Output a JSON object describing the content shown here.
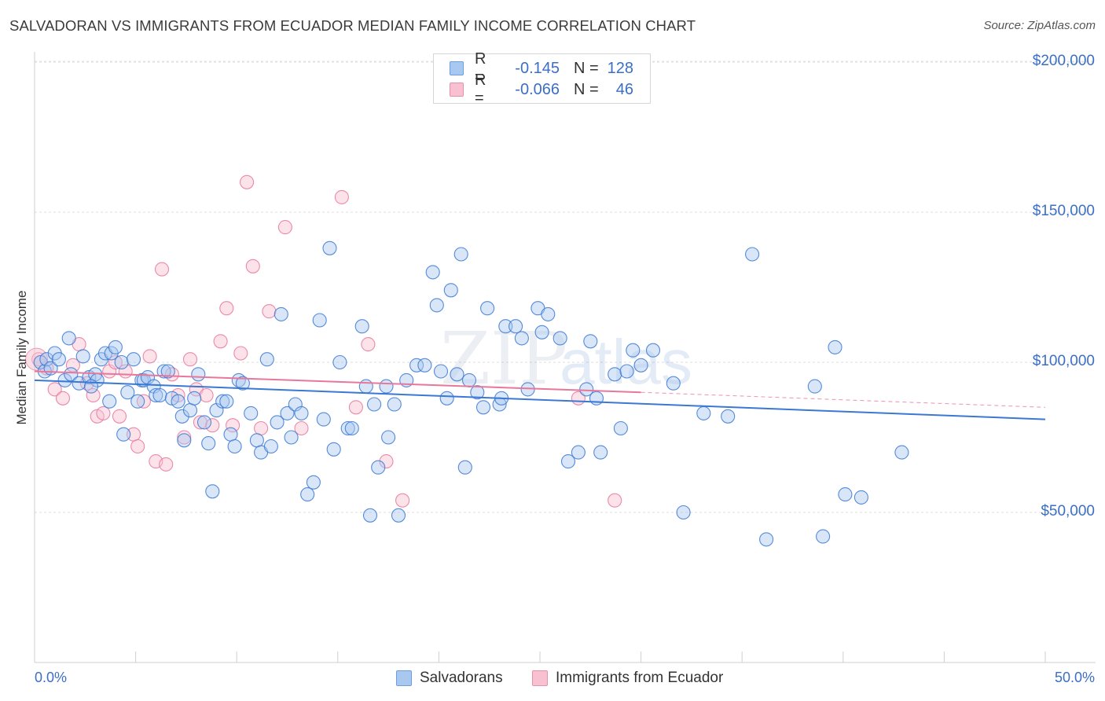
{
  "title": "SALVADORAN VS IMMIGRANTS FROM ECUADOR MEDIAN FAMILY INCOME CORRELATION CHART",
  "source": "Source: ZipAtlas.com",
  "legend": {
    "rows": [
      {
        "r_label": "R =",
        "r_value": "-0.145",
        "n_label": "N =",
        "n_value": "128",
        "color": "#a8c8f0",
        "border": "#6a9ee0"
      },
      {
        "r_label": "R =",
        "r_value": "-0.066",
        "n_label": "N =",
        "n_value": "46",
        "color": "#f8c0d0",
        "border": "#e890a8"
      }
    ]
  },
  "bottom_legend": [
    "Salvadorans",
    "Immigrants from Ecuador"
  ],
  "chart_data": {
    "type": "scatter",
    "ylabel": "Median Family Income",
    "xlim": [
      0,
      50
    ],
    "ylim": [
      0,
      210000
    ],
    "x_tick_labels": {
      "left": "0.0%",
      "right": "50.0%"
    },
    "y_ticks": [
      {
        "value": 50000,
        "label": "$50,000"
      },
      {
        "value": 100000,
        "label": "$100,000"
      },
      {
        "value": 150000,
        "label": "$150,000"
      },
      {
        "value": 200000,
        "label": "$200,000"
      }
    ],
    "grid": true,
    "colors": {
      "blue": "#3a78d4",
      "pink": "#e8779c",
      "blue_fill": "#a8c8f0",
      "pink_fill": "#f8c0d0"
    },
    "series": [
      {
        "name": "Salvadorans",
        "trend": {
          "x0": 0,
          "y0": 94000,
          "x1": 50,
          "y1": 81000
        },
        "points": [
          [
            0.3,
            100000
          ],
          [
            0.5,
            97000
          ],
          [
            0.6,
            101000
          ],
          [
            0.8,
            98000
          ],
          [
            1.0,
            103000
          ],
          [
            1.2,
            101000
          ],
          [
            1.5,
            94000
          ],
          [
            1.7,
            108000
          ],
          [
            1.8,
            96000
          ],
          [
            2.2,
            93000
          ],
          [
            2.4,
            102000
          ],
          [
            2.7,
            95000
          ],
          [
            3.0,
            96000
          ],
          [
            3.1,
            94000
          ],
          [
            3.3,
            101000
          ],
          [
            3.5,
            103000
          ],
          [
            3.7,
            87000
          ],
          [
            3.8,
            103000
          ],
          [
            4.0,
            105000
          ],
          [
            4.3,
            100000
          ],
          [
            4.4,
            76000
          ],
          [
            4.6,
            90000
          ],
          [
            4.9,
            101000
          ],
          [
            5.1,
            87000
          ],
          [
            5.3,
            94000
          ],
          [
            5.4,
            94000
          ],
          [
            5.6,
            95000
          ],
          [
            5.9,
            92000
          ],
          [
            6.0,
            89000
          ],
          [
            6.2,
            89000
          ],
          [
            6.4,
            97000
          ],
          [
            6.6,
            97000
          ],
          [
            6.8,
            88000
          ],
          [
            7.1,
            87000
          ],
          [
            7.3,
            82000
          ],
          [
            7.4,
            74000
          ],
          [
            7.7,
            84000
          ],
          [
            7.9,
            88000
          ],
          [
            8.1,
            96000
          ],
          [
            8.4,
            80000
          ],
          [
            8.6,
            73000
          ],
          [
            8.8,
            57000
          ],
          [
            9.0,
            84000
          ],
          [
            9.3,
            87000
          ],
          [
            9.5,
            87000
          ],
          [
            9.7,
            76000
          ],
          [
            9.9,
            72000
          ],
          [
            10.1,
            94000
          ],
          [
            10.3,
            93000
          ],
          [
            10.7,
            83000
          ],
          [
            11.0,
            74000
          ],
          [
            11.2,
            70000
          ],
          [
            11.5,
            101000
          ],
          [
            11.7,
            72000
          ],
          [
            12.0,
            80000
          ],
          [
            12.2,
            116000
          ],
          [
            12.5,
            83000
          ],
          [
            12.7,
            75000
          ],
          [
            12.9,
            86000
          ],
          [
            13.2,
            83000
          ],
          [
            13.5,
            56000
          ],
          [
            13.8,
            60000
          ],
          [
            14.1,
            114000
          ],
          [
            14.3,
            81000
          ],
          [
            14.6,
            138000
          ],
          [
            14.8,
            71000
          ],
          [
            15.1,
            100000
          ],
          [
            15.5,
            78000
          ],
          [
            15.7,
            78000
          ],
          [
            16.2,
            112000
          ],
          [
            16.4,
            92000
          ],
          [
            16.6,
            49000
          ],
          [
            16.8,
            86000
          ],
          [
            17.0,
            65000
          ],
          [
            17.4,
            92000
          ],
          [
            17.5,
            75000
          ],
          [
            17.8,
            86000
          ],
          [
            18.0,
            49000
          ],
          [
            18.4,
            94000
          ],
          [
            18.9,
            99000
          ],
          [
            19.3,
            99000
          ],
          [
            19.7,
            130000
          ],
          [
            19.9,
            119000
          ],
          [
            20.1,
            97000
          ],
          [
            20.4,
            88000
          ],
          [
            20.6,
            124000
          ],
          [
            20.9,
            96000
          ],
          [
            21.1,
            136000
          ],
          [
            21.3,
            65000
          ],
          [
            21.5,
            94000
          ],
          [
            21.9,
            90000
          ],
          [
            22.2,
            85000
          ],
          [
            22.4,
            118000
          ],
          [
            23.0,
            86000
          ],
          [
            23.1,
            88000
          ],
          [
            23.3,
            112000
          ],
          [
            23.8,
            112000
          ],
          [
            24.1,
            108000
          ],
          [
            24.4,
            91000
          ],
          [
            24.9,
            118000
          ],
          [
            25.1,
            110000
          ],
          [
            25.4,
            116000
          ],
          [
            26.0,
            108000
          ],
          [
            26.4,
            67000
          ],
          [
            26.9,
            70000
          ],
          [
            27.3,
            91000
          ],
          [
            27.5,
            107000
          ],
          [
            27.8,
            88000
          ],
          [
            28.0,
            70000
          ],
          [
            28.7,
            96000
          ],
          [
            29.0,
            78000
          ],
          [
            29.3,
            97000
          ],
          [
            29.6,
            104000
          ],
          [
            30.0,
            99000
          ],
          [
            30.6,
            104000
          ],
          [
            31.6,
            93000
          ],
          [
            32.1,
            50000
          ],
          [
            33.1,
            83000
          ],
          [
            34.3,
            82000
          ],
          [
            35.5,
            136000
          ],
          [
            36.2,
            41000
          ],
          [
            38.6,
            92000
          ],
          [
            39.0,
            42000
          ],
          [
            39.6,
            105000
          ],
          [
            40.1,
            56000
          ],
          [
            40.9,
            55000
          ],
          [
            42.9,
            70000
          ],
          [
            2.8,
            92000
          ]
        ]
      },
      {
        "name": "Immigrants from Ecuador",
        "trend": {
          "x0": 0,
          "y0": 97000,
          "x1": 30,
          "y1": 90000,
          "dashed_to_x": 50,
          "dashed_to_y": 85000
        },
        "points": [
          [
            0.2,
            101000
          ],
          [
            0.6,
            98000
          ],
          [
            1.0,
            91000
          ],
          [
            1.4,
            88000
          ],
          [
            1.9,
            99000
          ],
          [
            2.2,
            106000
          ],
          [
            2.6,
            93000
          ],
          [
            2.9,
            89000
          ],
          [
            3.1,
            82000
          ],
          [
            3.4,
            83000
          ],
          [
            3.7,
            97000
          ],
          [
            4.0,
            100000
          ],
          [
            4.2,
            82000
          ],
          [
            4.5,
            97000
          ],
          [
            4.9,
            76000
          ],
          [
            5.1,
            72000
          ],
          [
            5.4,
            87000
          ],
          [
            5.7,
            102000
          ],
          [
            6.0,
            67000
          ],
          [
            6.3,
            131000
          ],
          [
            6.5,
            66000
          ],
          [
            6.8,
            96000
          ],
          [
            7.1,
            89000
          ],
          [
            7.4,
            75000
          ],
          [
            7.7,
            101000
          ],
          [
            8.0,
            91000
          ],
          [
            8.2,
            80000
          ],
          [
            8.5,
            89000
          ],
          [
            8.8,
            79000
          ],
          [
            9.2,
            107000
          ],
          [
            9.5,
            118000
          ],
          [
            9.8,
            79000
          ],
          [
            10.2,
            103000
          ],
          [
            10.5,
            160000
          ],
          [
            10.8,
            132000
          ],
          [
            11.2,
            78000
          ],
          [
            11.6,
            117000
          ],
          [
            12.4,
            145000
          ],
          [
            13.2,
            78000
          ],
          [
            15.2,
            155000
          ],
          [
            15.9,
            85000
          ],
          [
            16.5,
            106000
          ],
          [
            17.4,
            67000
          ],
          [
            18.2,
            54000
          ],
          [
            26.9,
            88000
          ],
          [
            28.7,
            54000
          ]
        ]
      }
    ]
  }
}
